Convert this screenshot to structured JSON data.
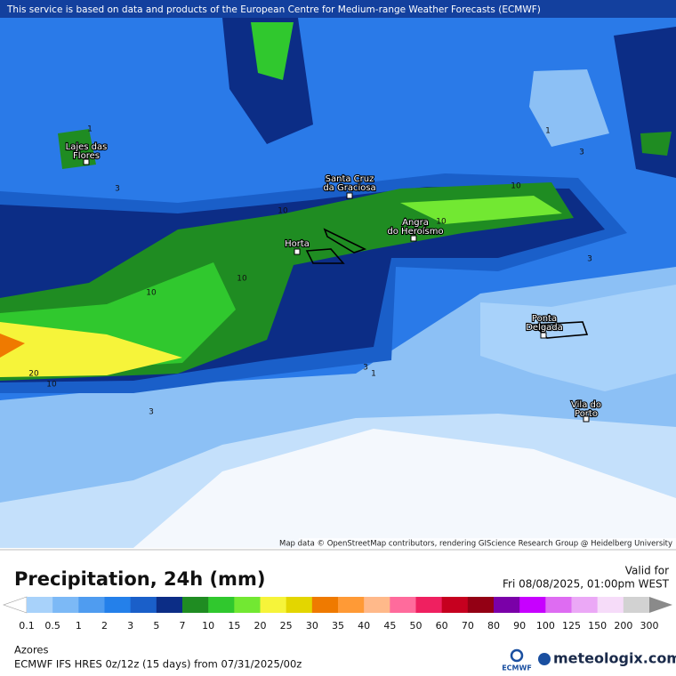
{
  "header": {
    "notice": "This service is based on data and products of the European Centre for Medium-range Weather Forecasts (ECMWF)"
  },
  "places": [
    {
      "lines": [
        "Lajes das",
        "Flores"
      ]
    },
    {
      "lines": [
        "Santa Cruz",
        "da Graciosa"
      ]
    },
    {
      "lines": [
        "Angra",
        "do Heroísmo"
      ]
    },
    {
      "lines": [
        "Horta"
      ]
    },
    {
      "lines": [
        "Ponta",
        "Delgada"
      ]
    },
    {
      "lines": [
        "Vila do",
        "Porto"
      ]
    }
  ],
  "contour_labels": [
    "10",
    "3",
    "10",
    "10",
    "10",
    "10",
    "3",
    "1",
    "3",
    "20",
    "10",
    "3",
    "1",
    "3",
    "1"
  ],
  "attribution": "Map data © OpenStreetMap contributors, rendering GIScience Research Group @ Heidelberg University",
  "footer": {
    "title": "Precipitation, 24h (mm)",
    "valid_label": "Valid for",
    "valid_time": "Fri 08/08/2025, 01:00pm WEST",
    "legend": {
      "labels": [
        "0.1",
        "0.5",
        "1",
        "2",
        "3",
        "5",
        "7",
        "10",
        "15",
        "20",
        "25",
        "30",
        "35",
        "40",
        "45",
        "50",
        "60",
        "70",
        "80",
        "90",
        "100",
        "125",
        "150",
        "200",
        "300"
      ],
      "colors": [
        "#a8d2fa",
        "#7cb9f6",
        "#4f9cf0",
        "#2480ea",
        "#1a5fc9",
        "#0c2d86",
        "#1f8c22",
        "#30c82e",
        "#72e832",
        "#f6f43a",
        "#e3d600",
        "#ef7a00",
        "#ff9a36",
        "#ffb98a",
        "#ff6b9c",
        "#ef2060",
        "#c6001f",
        "#930014",
        "#7a00a8",
        "#c700ff",
        "#de6cf2",
        "#eba8f6",
        "#f6dcf9",
        "#d2d2d2"
      ],
      "under_color": "#ffffff",
      "over_color": "#8a8a8a"
    },
    "region": "Azores",
    "model": "ECMWF IFS HRES 0z/12z (15 days) from  07/31/2025/00z",
    "ecmwf": "ECMWF",
    "brand": "meteologix.com"
  }
}
